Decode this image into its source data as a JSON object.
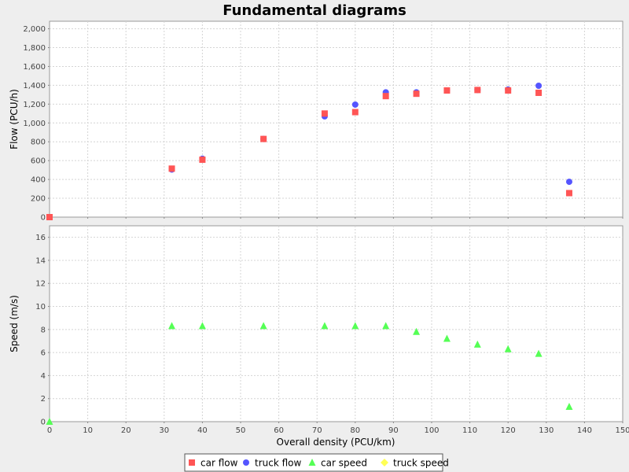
{
  "chart_data": {
    "type": "scatter",
    "title": "Fundamental diagrams",
    "xlabel": "Overall density (PCU/km)",
    "xlim": [
      0,
      150
    ],
    "xticks": [
      0,
      10,
      20,
      30,
      40,
      50,
      60,
      70,
      80,
      90,
      100,
      110,
      120,
      130,
      140,
      150
    ],
    "grid": true,
    "legend_placement": "bottom",
    "panels": [
      {
        "ylabel": "Flow (PCU/h)",
        "ylim": [
          0,
          2080
        ],
        "yticks": [
          0,
          200,
          400,
          600,
          800,
          1000,
          1200,
          1400,
          1600,
          1800,
          2000
        ],
        "ytick_labels": [
          "0",
          "200",
          "400",
          "600",
          "800",
          "1,000",
          "1,200",
          "1,400",
          "1,600",
          "1,800",
          "2,000"
        ],
        "series": [
          {
            "name": "truck flow",
            "marker": "circle",
            "color": "#5555ff",
            "points": [
              [
                32,
                505
              ],
              [
                40,
                620
              ],
              [
                56,
                830
              ],
              [
                72,
                1070
              ],
              [
                80,
                1195
              ],
              [
                88,
                1325
              ],
              [
                96,
                1325
              ],
              [
                104,
                1345
              ],
              [
                112,
                1350
              ],
              [
                120,
                1355
              ],
              [
                128,
                1395
              ],
              [
                136,
                375
              ]
            ]
          },
          {
            "name": "car flow",
            "marker": "square",
            "color": "#ff5555",
            "points": [
              [
                0,
                0
              ],
              [
                32,
                515
              ],
              [
                40,
                610
              ],
              [
                56,
                830
              ],
              [
                72,
                1100
              ],
              [
                80,
                1115
              ],
              [
                88,
                1285
              ],
              [
                96,
                1310
              ],
              [
                104,
                1345
              ],
              [
                112,
                1350
              ],
              [
                120,
                1345
              ],
              [
                128,
                1320
              ],
              [
                136,
                255
              ]
            ]
          }
        ]
      },
      {
        "ylabel": "Speed (m/s)",
        "ylim": [
          0,
          17
        ],
        "yticks": [
          0,
          2,
          4,
          6,
          8,
          10,
          12,
          14,
          16
        ],
        "ytick_labels": [
          "0",
          "2",
          "4",
          "6",
          "8",
          "10",
          "12",
          "14",
          "16"
        ],
        "series": [
          {
            "name": "car speed",
            "marker": "triangle",
            "color": "#55ff55",
            "points": [
              [
                0,
                0
              ],
              [
                32,
                8.3
              ],
              [
                40,
                8.3
              ],
              [
                56,
                8.3
              ],
              [
                72,
                8.3
              ],
              [
                80,
                8.3
              ],
              [
                88,
                8.3
              ],
              [
                96,
                7.8
              ],
              [
                104,
                7.2
              ],
              [
                112,
                6.7
              ],
              [
                120,
                6.3
              ],
              [
                128,
                5.9
              ],
              [
                136,
                1.3
              ]
            ]
          }
        ]
      }
    ],
    "legend": [
      {
        "name": "car flow",
        "marker": "square",
        "color": "#ff5555"
      },
      {
        "name": "truck flow",
        "marker": "circle",
        "color": "#5555ff"
      },
      {
        "name": "car speed",
        "marker": "triangle",
        "color": "#55ff55"
      },
      {
        "name": "truck speed",
        "marker": "diamond",
        "color": "#ffff55"
      }
    ]
  }
}
